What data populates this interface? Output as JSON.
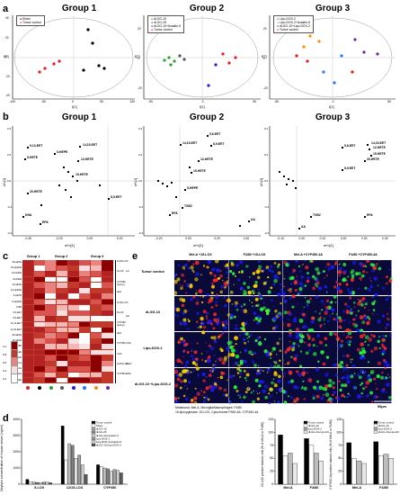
{
  "panel_labels": {
    "a": "a",
    "b": "b",
    "c": "c",
    "d": "d",
    "e": "e"
  },
  "panel_a": {
    "groups": [
      {
        "title": "Group 1",
        "legend": [
          "Sham",
          "Tumor control"
        ],
        "legend_colors": [
          "#000000",
          "#e41a1c"
        ],
        "xlabel": "t[1]",
        "ylabel": "t[2]",
        "xticks": [
          "-100",
          "-50",
          "0",
          "50",
          "100"
        ],
        "yticks": [
          "40",
          "20",
          "0",
          "-20",
          "-40"
        ]
      },
      {
        "title": "Group 2",
        "legend": [
          "dLGG-10",
          "dLGG-25",
          "dLGG-10+Avastin-5",
          "Tumor control"
        ],
        "legend_colors": [
          "#2ca02c",
          "#555555",
          "#1f1fd0",
          "#e41a1c"
        ],
        "xlabel": "t[1]",
        "ylabel": "t[2]",
        "xticks": [
          "-50",
          "0",
          "50"
        ],
        "yticks": [
          "20",
          "0",
          "-20"
        ]
      },
      {
        "title": "Group 3",
        "legend": [
          "Lipo-DOX-2",
          "Lipo-DOX-2+Avastin-5",
          "dLGG-10+Lipo-DOX-2",
          "Tumor control"
        ],
        "legend_colors": [
          "#1f77ff",
          "#ff8c00",
          "#7b1fa2",
          "#e41a1c"
        ],
        "xlabel": "t[1]",
        "ylabel": "t[2]",
        "xticks": [
          "-50",
          "0",
          "50"
        ],
        "yticks": [
          "20",
          "0",
          "-20"
        ]
      }
    ]
  },
  "panel_b": {
    "groups": [
      {
        "title": "Group 1",
        "xlabel": "w*c[1]",
        "ylabel": "w*c[2]",
        "xticks": [
          "-0.40",
          "-0.20",
          "0.00",
          "0.20"
        ],
        "yticks": [
          "0.4",
          "0.2",
          "0.0",
          "-0.2",
          "-0.4"
        ],
        "labels": [
          "9,12-EET",
          "5-HETE",
          "14,15-EET",
          "5-HEPE",
          "12-HETE",
          "15-HETE",
          "20-HETE",
          "EPA",
          "DHA",
          "8,9-EET"
        ]
      },
      {
        "title": "Group 2",
        "xlabel": "w*c[1]",
        "ylabel": "w*c[2]",
        "xticks": [
          "-0.20",
          "0.00",
          "0.20",
          "0.40"
        ],
        "yticks": [
          "0.4",
          "0.2",
          "0.0",
          "-0.2",
          "-0.4"
        ],
        "labels": [
          "5,6-EET",
          "14,15-EET",
          "8,9-EET",
          "12-HETE",
          "15-HETE",
          "TXB2",
          "AA",
          "EPA",
          "5-HEPE"
        ]
      },
      {
        "title": "Group 3",
        "xlabel": "w*c[1]",
        "ylabel": "w*c[2]",
        "xticks": [
          "-0.10",
          "0.00",
          "0.10",
          "0.20",
          "0.30",
          "0.40"
        ],
        "yticks": [
          "0.4",
          "0.2",
          "0.0",
          "-0.2",
          "-0.4"
        ],
        "labels": [
          "14,15-EET",
          "5,6-EET",
          "12-HETE",
          "15-HETE",
          "20-HETE",
          "8,9-EET",
          "TXB2",
          "EPA",
          "AA"
        ]
      }
    ]
  },
  "panel_c": {
    "group_headers": [
      "Group 1",
      "Group 2",
      "Group 3"
    ],
    "rows": [
      "15-HETE",
      "15-HpETE",
      "13-HODE",
      "9-HODE",
      "12-HETE",
      "12-HpETE",
      "5-HETE",
      "5-HpETE",
      "LTB4",
      "5,6-EET",
      "8,9-EET",
      "11,12-EET",
      "14,15-EET",
      "20-HETE",
      "19-HETE",
      "TXB2",
      "PGE2",
      "PGD2",
      "6k-PGF1a",
      "AA",
      "DHA",
      "EPA"
    ],
    "brackets": [
      "12/15-LOX",
      "9-LOX",
      "CYP450 (epoxy)",
      "sEH",
      "12/15-LOX",
      "5-LOX",
      "CYP450 (epoxy)",
      "sEH",
      "CYP450 (OH)",
      "COX",
      "12/15-LOX",
      "CYP450"
    ],
    "side_labels": [
      "LA",
      "AA",
      "DHA",
      "EPA"
    ],
    "scale": [
      "0.2",
      "0.4",
      "0.6",
      "0.8",
      "1.0"
    ],
    "dot_colors": [
      "#e41a1c",
      "#000000",
      "#2ca02c",
      "#555555",
      "#1f1fd0",
      "#1f77ff",
      "#ff8c00",
      "#7b1fa2"
    ]
  },
  "panel_d": {
    "ylabel": "Oxylipin concentration of mouse serum (ng/ml)",
    "yticks": [
      "0",
      "1000",
      "2000",
      "3000",
      "4000"
    ],
    "categories": [
      "5-LOX",
      "12/15-LOX",
      "CYP450"
    ],
    "legend": [
      "Tumor control",
      "Sham",
      "dLGG-10",
      "dLGG-25",
      "dLGG-10+Avastin-5",
      "Lipo-DOX-2",
      "Lipo-DOX-2+Avastin-5",
      "dLGG-10+Lipo-DOX-2"
    ]
  },
  "chart_data": [
    {
      "type": "bar",
      "categories": [
        "5-LOX",
        "12/15-LOX",
        "CYP450"
      ],
      "series": [
        {
          "name": "Tumor control",
          "values": [
            300,
            3600,
            1200
          ]
        },
        {
          "name": "Sham",
          "values": [
            150,
            1500,
            1100
          ]
        },
        {
          "name": "dLGG-10",
          "values": [
            120,
            2500,
            1000
          ]
        },
        {
          "name": "dLGG-25",
          "values": [
            110,
            2400,
            950
          ]
        },
        {
          "name": "dLGG-10+Avastin-5",
          "values": [
            100,
            1600,
            800
          ]
        },
        {
          "name": "Lipo-DOX-2",
          "values": [
            130,
            1800,
            900
          ]
        },
        {
          "name": "Lipo-DOX-2+Avastin-5",
          "values": [
            120,
            1200,
            850
          ]
        },
        {
          "name": "dLGG-10+Lipo-DOX-2",
          "values": [
            90,
            600,
            700
          ]
        }
      ],
      "ylabel": "Oxylipin concentration of mouse serum (ng/ml)",
      "ylim": [
        0,
        4000
      ]
    },
    {
      "type": "bar",
      "categories": [
        "Mel-A",
        "F4/80"
      ],
      "series": [
        {
          "name": "Tumor control",
          "values": [
            95,
            88
          ]
        },
        {
          "name": "dLGG-10",
          "values": [
            55,
            75
          ]
        },
        {
          "name": "Lipo-DOX-2",
          "values": [
            60,
            60
          ]
        },
        {
          "name": "dLGG-10+Lipo-DOX-2",
          "values": [
            40,
            45
          ]
        }
      ],
      "ylabel": "15-LOX positive stained cells (% of Mel-A or F4/80)",
      "ylim": [
        0,
        125
      ]
    },
    {
      "type": "bar",
      "categories": [
        "Mel-A",
        "F4/80"
      ],
      "series": [
        {
          "name": "Tumor control",
          "values": [
            80,
            82
          ]
        },
        {
          "name": "dLGG-10",
          "values": [
            50,
            55
          ]
        },
        {
          "name": "Lipo-DOX-2",
          "values": [
            45,
            58
          ]
        },
        {
          "name": "dLGG-10+Lipo-DOX-2",
          "values": [
            40,
            50
          ]
        }
      ],
      "ylabel": "CYP450-4A positive stained cells (% of Mel-A or F4/80)",
      "ylim": [
        0,
        125
      ]
    }
  ],
  "panel_e": {
    "columns": [
      "Mel-A +15-LOX",
      "F4/80 +15-LOX",
      "Mel-A +CYP450-4A",
      "F4/80 +CYP450-4A"
    ],
    "rows": [
      "Tumor control",
      "dLGG-10",
      "Lipo-DOX-2",
      "dLGG-10 +Lipo-DOX-2"
    ],
    "scale_bar": "50μm",
    "caption_line1": "Melanoma: Mel-A, Microglia/Macrophages: F4/80",
    "caption_line2": "15-lipoxygenase: 15-LOX, Cytochrome P450-4A: CYP450-4A",
    "chart1": {
      "ylabel": "15-LOX positive stained cells (% of Mel-A or F4/80)",
      "yticks": [
        "0",
        "25",
        "50",
        "75",
        "100",
        "125"
      ],
      "categories": [
        "Mel-A",
        "F4/80"
      ],
      "legend": [
        "Tumor control",
        "dLGG-10",
        "Lipo-DOX-2",
        "dLGG-10+Lipo-DOX-2"
      ]
    },
    "chart2": {
      "ylabel": "CYP450-4A positive stained cells (% of Mel-A or F4/80)",
      "yticks": [
        "0",
        "25",
        "50",
        "75",
        "100",
        "125"
      ],
      "categories": [
        "Mel-A",
        "F4/80"
      ],
      "legend": [
        "Tumor control",
        "dLGG-10",
        "Lipo-DOX-2",
        "dLGG-10+Lipo-DOX-2"
      ]
    }
  }
}
